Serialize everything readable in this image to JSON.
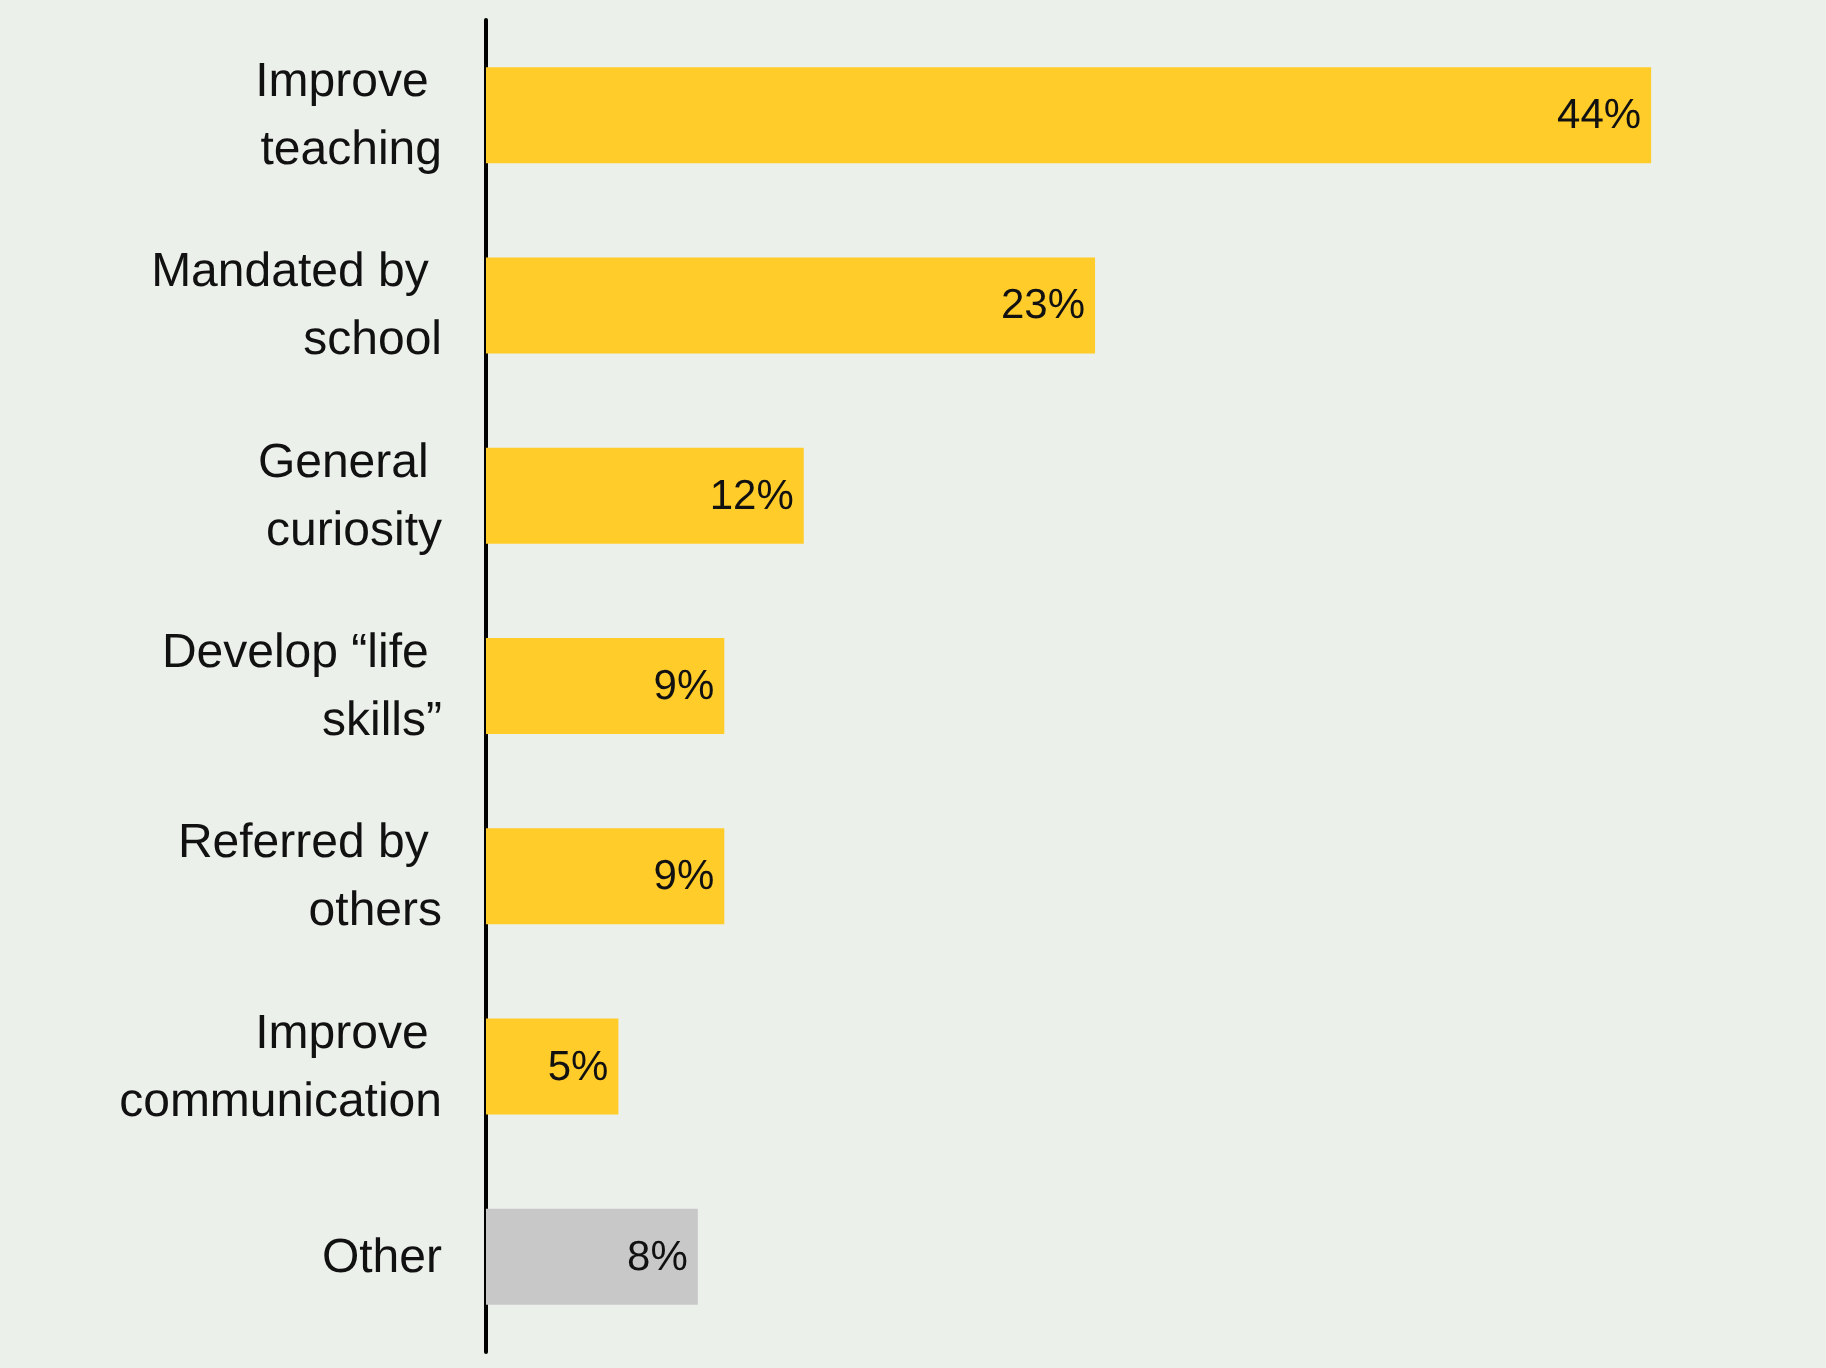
{
  "chart_data": {
    "type": "bar",
    "orientation": "horizontal",
    "categories": [
      "Improve teaching",
      "Mandated by school",
      "General curiosity",
      "Develop “life skills”",
      "Referred by others",
      "Improve communication",
      "Other"
    ],
    "values": [
      44,
      23,
      12,
      9,
      9,
      5,
      8
    ],
    "value_labels": [
      "44%",
      "23%",
      "12%",
      "9%",
      "9%",
      "5%",
      "8%"
    ],
    "colors": [
      "#ffcc29",
      "#ffcc29",
      "#ffcc29",
      "#ffcc29",
      "#ffcc29",
      "#ffcc29",
      "#c8c8c8"
    ]
  }
}
